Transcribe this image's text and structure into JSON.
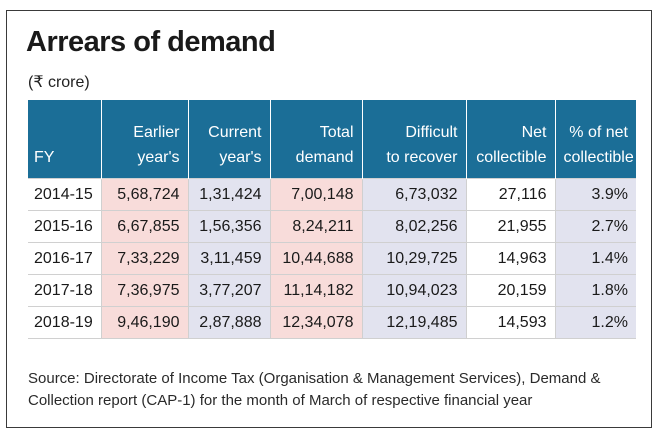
{
  "title": "Arrears of demand",
  "subtitle": "(₹ crore)",
  "chart_data": {
    "type": "table",
    "title": "Arrears of demand",
    "unit": "(₹ crore)",
    "columns": [
      {
        "lines": [
          "FY"
        ]
      },
      {
        "lines": [
          "Earlier",
          "year's"
        ]
      },
      {
        "lines": [
          "Current",
          "year's"
        ]
      },
      {
        "lines": [
          "Total",
          "demand"
        ]
      },
      {
        "lines": [
          "Difficult",
          "to recover"
        ]
      },
      {
        "lines": [
          "Net",
          "collectible"
        ]
      },
      {
        "lines": [
          "% of net",
          "collectible"
        ]
      }
    ],
    "rows": [
      [
        "2014-15",
        "5,68,724",
        "1,31,424",
        "7,00,148",
        "6,73,032",
        "27,116",
        "3.9%"
      ],
      [
        "2015-16",
        "6,67,855",
        "1,56,356",
        "8,24,211",
        "8,02,256",
        "21,955",
        "2.7%"
      ],
      [
        "2016-17",
        "7,33,229",
        "3,11,459",
        "10,44,688",
        "10,29,725",
        "14,963",
        "1.4%"
      ],
      [
        "2017-18",
        "7,36,975",
        "3,77,207",
        "11,14,182",
        "10,94,023",
        "20,159",
        "1.8%"
      ],
      [
        "2018-19",
        "9,46,190",
        "2,87,888",
        "12,34,078",
        "12,19,485",
        "14,593",
        "1.2%"
      ]
    ]
  },
  "source": "Source: Directorate of Income Tax (Organisation & Management Services), Demand & Collection report (CAP-1) for the month of March of respective financial year",
  "colors": {
    "header_bg": "#1b6e97",
    "pink_column": "#f8dcda",
    "lavender_column": "#e2e3ef"
  }
}
